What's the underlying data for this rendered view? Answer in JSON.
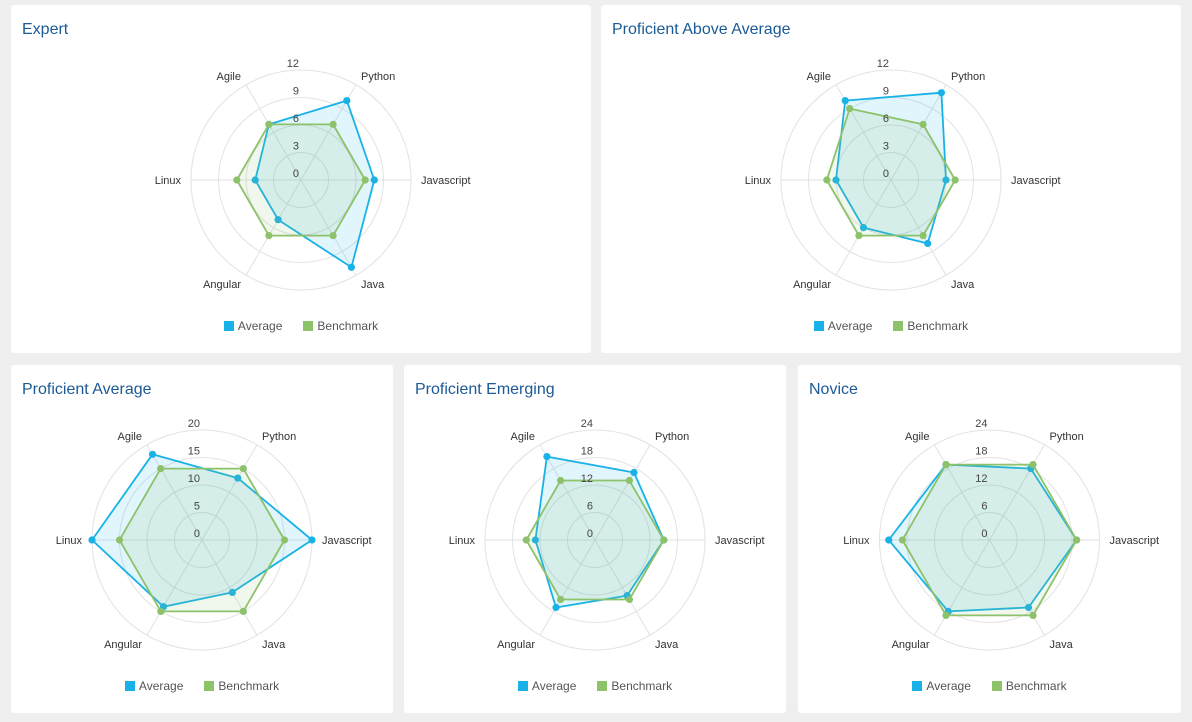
{
  "colors": {
    "page_background": "#efefef",
    "card_background": "#ffffff",
    "title": "#1b5a96",
    "grid": "#e2e2e2"
  },
  "chart_data": [
    {
      "type": "radar",
      "title": "Expert",
      "categories": [
        "Python",
        "Javascript",
        "Java",
        "Angular",
        "Linux",
        "Agile"
      ],
      "ticks": [
        0,
        3,
        6,
        9,
        12
      ],
      "ylim": [
        0,
        12
      ],
      "grid": true,
      "legend": "bottom",
      "series": [
        {
          "name": "Average",
          "color": "#19b2e6",
          "values": [
            10,
            8,
            11,
            5,
            5,
            7
          ]
        },
        {
          "name": "Benchmark",
          "color": "#8dc26b",
          "values": [
            7,
            7,
            7,
            7,
            7,
            7
          ]
        }
      ]
    },
    {
      "type": "radar",
      "title": "Proficient Above Average",
      "categories": [
        "Python",
        "Javascript",
        "Java",
        "Angular",
        "Linux",
        "Agile"
      ],
      "ticks": [
        0,
        3,
        6,
        9,
        12
      ],
      "ylim": [
        0,
        12
      ],
      "grid": true,
      "legend": "bottom",
      "series": [
        {
          "name": "Average",
          "color": "#19b2e6",
          "values": [
            11,
            6,
            8,
            6,
            6,
            10
          ]
        },
        {
          "name": "Benchmark",
          "color": "#8dc26b",
          "values": [
            7,
            7,
            7,
            7,
            7,
            9
          ]
        }
      ]
    },
    {
      "type": "radar",
      "title": "Proficient Average",
      "categories": [
        "Python",
        "Javascript",
        "Java",
        "Angular",
        "Linux",
        "Agile"
      ],
      "ticks": [
        0,
        5,
        10,
        15,
        20
      ],
      "ylim": [
        0,
        20
      ],
      "grid": true,
      "legend": "bottom",
      "series": [
        {
          "name": "Average",
          "color": "#19b2e6",
          "values": [
            13,
            20,
            11,
            14,
            20,
            18
          ]
        },
        {
          "name": "Benchmark",
          "color": "#8dc26b",
          "values": [
            15,
            15,
            15,
            15,
            15,
            15
          ]
        }
      ]
    },
    {
      "type": "radar",
      "title": "Proficient Emerging",
      "categories": [
        "Python",
        "Javascript",
        "Java",
        "Angular",
        "Linux",
        "Agile"
      ],
      "ticks": [
        0,
        6,
        12,
        18,
        24
      ],
      "ylim": [
        0,
        24
      ],
      "grid": true,
      "legend": "bottom",
      "series": [
        {
          "name": "Average",
          "color": "#19b2e6",
          "values": [
            17,
            15,
            14,
            17,
            13,
            21
          ]
        },
        {
          "name": "Benchmark",
          "color": "#8dc26b",
          "values": [
            15,
            15,
            15,
            15,
            15,
            15
          ]
        }
      ]
    },
    {
      "type": "radar",
      "title": "Novice",
      "categories": [
        "Python",
        "Javascript",
        "Java",
        "Angular",
        "Linux",
        "Agile"
      ],
      "ticks": [
        0,
        6,
        12,
        18,
        24
      ],
      "ylim": [
        0,
        24
      ],
      "grid": true,
      "legend": "bottom",
      "series": [
        {
          "name": "Average",
          "color": "#19b2e6",
          "values": [
            18,
            19,
            17,
            18,
            22,
            19
          ]
        },
        {
          "name": "Benchmark",
          "color": "#8dc26b",
          "values": [
            19,
            19,
            19,
            19,
            19,
            19
          ]
        }
      ]
    }
  ]
}
